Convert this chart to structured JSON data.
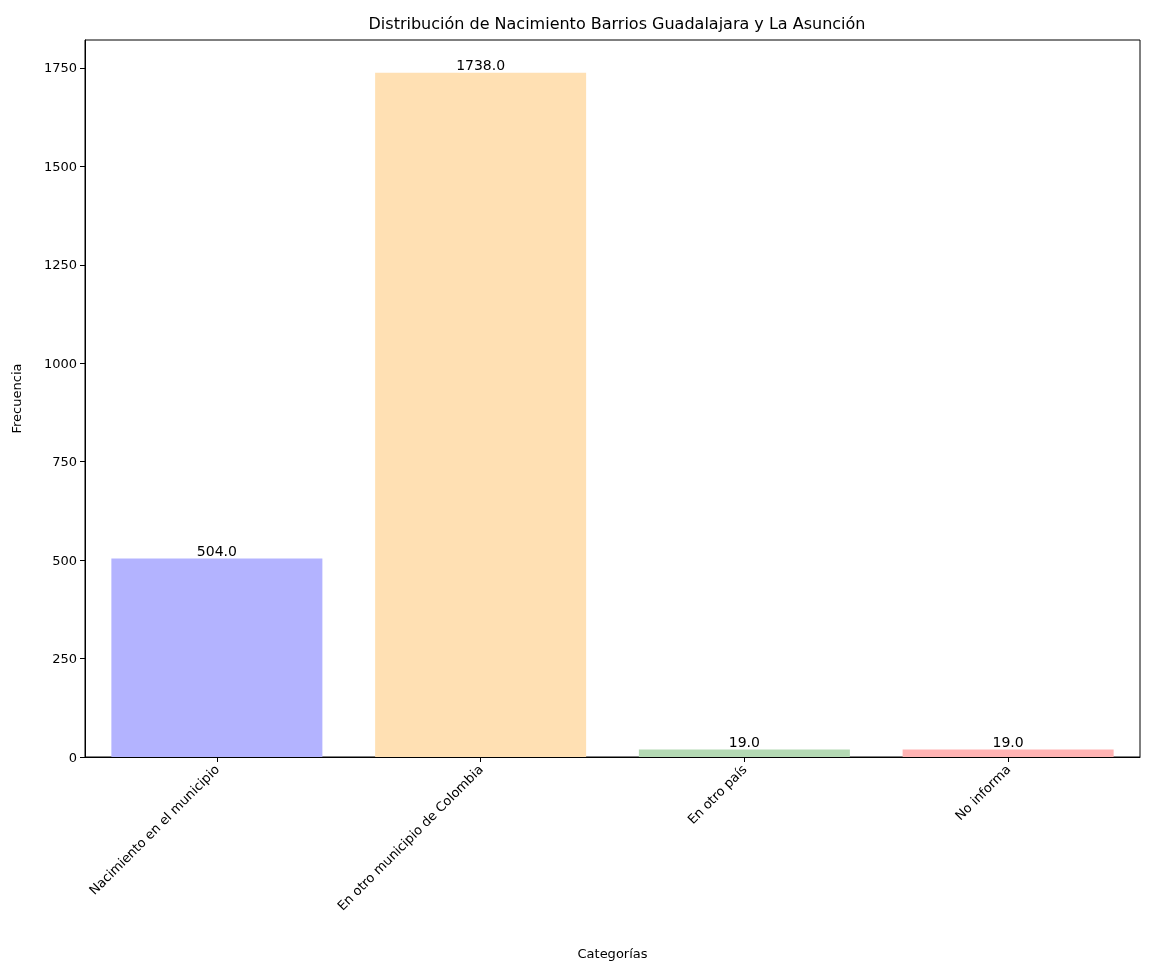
{
  "chart_data": {
    "type": "bar",
    "title": "Distribución de Nacimiento Barrios Guadalajara y La Asunción",
    "xlabel": "Categorías",
    "ylabel": "Frecuencia",
    "categories": [
      "Nacimiento en el municipio",
      "En otro municipio de Colombia",
      "En otro país",
      "No informa"
    ],
    "values": [
      504,
      1738,
      19,
      19
    ],
    "colors": [
      "#b3b3ff",
      "#ffe0b3",
      "#b3d9b3",
      "#ffb3b3"
    ],
    "value_labels": [
      "504.0",
      "1738.0",
      "19.0",
      "19.0"
    ],
    "ylim": [
      0,
      1821
    ],
    "yticks": [
      0,
      250,
      500,
      750,
      1000,
      1250,
      1500,
      1750
    ],
    "grid": false
  }
}
